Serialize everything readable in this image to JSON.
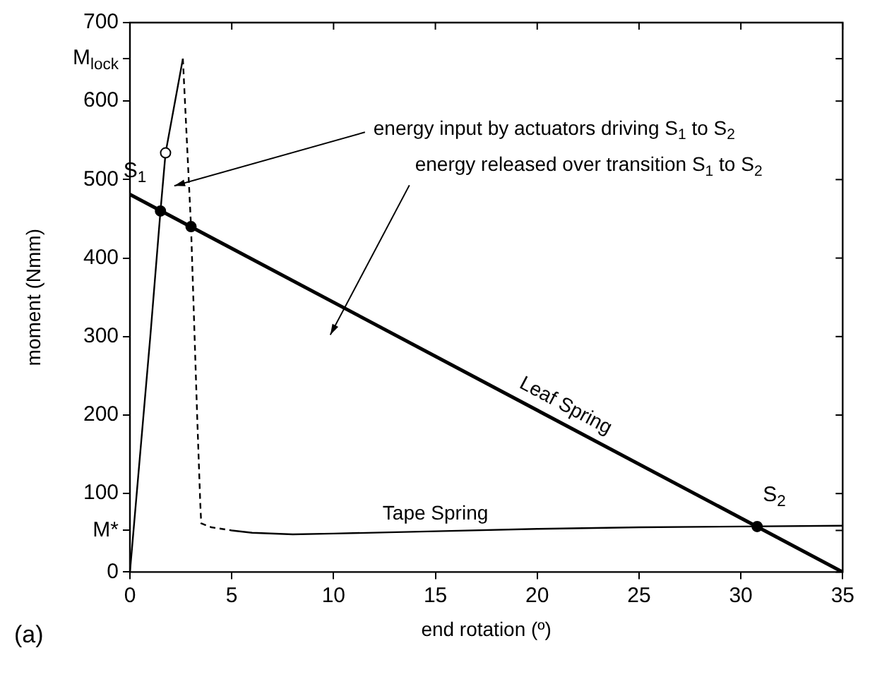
{
  "chart_data": {
    "type": "line",
    "xlabel": "end rotation (º)",
    "ylabel": "moment (Nmm)",
    "xlim": [
      0,
      35
    ],
    "xticks": [
      0,
      5,
      10,
      15,
      20,
      25,
      30,
      35
    ],
    "ylim": [
      0,
      700
    ],
    "yticks": [
      0,
      {
        "value": 53,
        "label": "M*"
      },
      100,
      200,
      300,
      400,
      500,
      600,
      {
        "value": 654,
        "label": "M$_{lock}$"
      },
      700
    ],
    "grid": false,
    "legend": false,
    "series": [
      {
        "name": "Leaf Spring",
        "color": "#000000",
        "x": [
          0,
          35
        ],
        "values": [
          481,
          0
        ]
      },
      {
        "color": "#000000",
        "x": [
          0,
          1.0,
          1.5,
          1.75,
          2.6
        ],
        "values": [
          0,
          300,
          460,
          534,
          654
        ]
      },
      {
        "line_style": "dashed",
        "color": "#000000",
        "x": [
          2.6,
          3.0,
          3.3,
          3.45,
          3.5,
          4,
          5
        ],
        "values": [
          654,
          440,
          200,
          90,
          62,
          57,
          53
        ]
      },
      {
        "name": "Tape Spring",
        "color": "#000000",
        "x": [
          5,
          6,
          8,
          10,
          15,
          20,
          25,
          30,
          35
        ],
        "values": [
          53,
          50,
          48,
          49,
          52,
          55,
          57,
          58,
          59
        ]
      },
      {
        "type": "scatter",
        "marker": "circle",
        "color": "#000000",
        "x": [
          1.5,
          3.0,
          30.8
        ],
        "values": [
          460,
          440,
          58
        ]
      },
      {
        "type": "scatter",
        "marker": "circle",
        "color": "#ffffff",
        "x": [
          1.75
        ],
        "values": [
          534
        ]
      }
    ],
    "annotations": [
      {
        "text": "S$_{1}$",
        "x": 1.5,
        "y": 460
      },
      {
        "text": "S$_{2}$",
        "x": 30.8,
        "y": 58
      },
      {
        "text": "energy input by actuators driving S$_{1}$ to S$_{2}$",
        "x": 1.9,
        "y": 492
      },
      "energy released over transition S$_{1}$ to S$_{2}$",
      "(a)"
    ]
  }
}
